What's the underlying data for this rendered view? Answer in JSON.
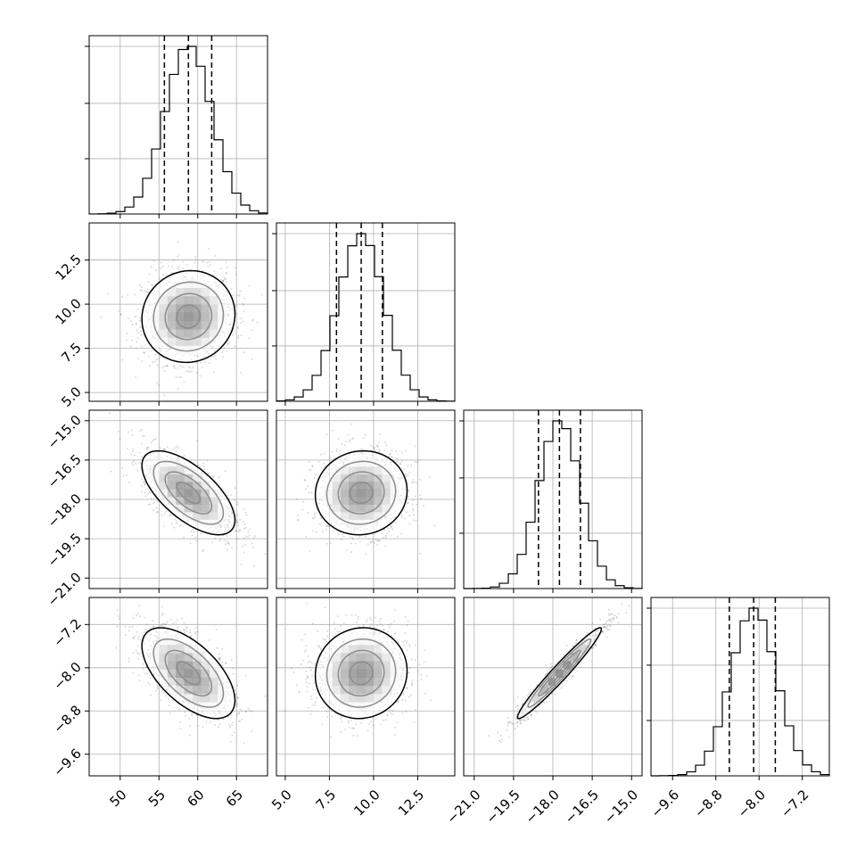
{
  "chart_data": {
    "type": "corner",
    "parameters": [
      {
        "range": [
          46,
          69
        ],
        "ticks": [
          50,
          55,
          60,
          65
        ],
        "tick_labels": [
          "50",
          "55",
          "60",
          "65"
        ],
        "median": 58.8,
        "q16": 55.7,
        "q84": 61.8,
        "sigma": 3.0
      },
      {
        "range": [
          4.5,
          14.6
        ],
        "ticks": [
          5.0,
          7.5,
          10.0,
          12.5
        ],
        "tick_labels": [
          "5.0",
          "7.5",
          "10.0",
          "12.5"
        ],
        "median": 9.3,
        "q16": 7.9,
        "q84": 10.5,
        "sigma": 1.3
      },
      {
        "range": [
          -21.4,
          -14.6
        ],
        "ticks": [
          -21.0,
          -19.5,
          -18.0,
          -16.5,
          -15.0
        ],
        "tick_labels": [
          "−21.0",
          "−19.5",
          "−18.0",
          "−16.5",
          "−15.0"
        ],
        "median": -17.75,
        "q16": -18.55,
        "q84": -16.95,
        "sigma": 0.8
      },
      {
        "range": [
          -10.0,
          -6.7
        ],
        "ticks": [
          -9.6,
          -8.8,
          -8.0,
          -7.2
        ],
        "tick_labels": [
          "−9.6",
          "−8.8",
          "−8.0",
          "−7.2"
        ],
        "median": -8.1,
        "q16": -8.55,
        "q84": -7.7,
        "sigma": 0.42
      }
    ],
    "correlations": [
      [
        1,
        0.05,
        -0.65,
        -0.6
      ],
      [
        0.05,
        1,
        0.05,
        0.05
      ],
      [
        -0.65,
        0.05,
        1,
        0.97
      ],
      [
        -0.6,
        0.05,
        0.97,
        1
      ]
    ],
    "histogram_bins": 20,
    "quantile_lines": "dashed",
    "grid": true
  },
  "colors": {
    "axis": "#000000",
    "grid": "#b0b0b0",
    "points": "#555555",
    "contour": "#000000"
  }
}
